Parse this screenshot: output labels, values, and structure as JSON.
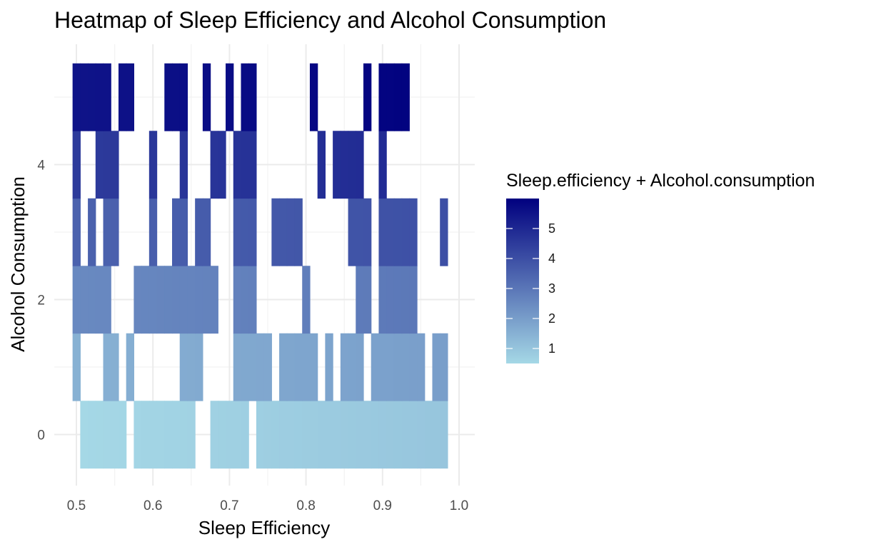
{
  "chart_data": {
    "type": "heatmap",
    "title": "Heatmap of Sleep Efficiency and Alcohol Consumption",
    "xlabel": "Sleep Efficiency",
    "ylabel": "Alcohol Consumption",
    "xlim": [
      0.5,
      1.0
    ],
    "ylim": [
      -0.5,
      5.5
    ],
    "x_ticks": [
      0.5,
      0.6,
      0.7,
      0.8,
      0.9,
      1.0
    ],
    "x_tick_labels": [
      "0.5",
      "0.6",
      "0.7",
      "0.8",
      "0.9",
      "1.0"
    ],
    "y_ticks": [
      0,
      2,
      4
    ],
    "y_tick_labels": [
      "0",
      "2",
      "4"
    ],
    "tile_width": 0.01,
    "tile_height": 1,
    "grid": true,
    "legend": {
      "title": "Sleep.efficiency + Alcohol.consumption",
      "position": "right",
      "range": [
        0.5,
        6.0
      ],
      "breaks": [
        1,
        2,
        3,
        4,
        5
      ],
      "labels": [
        "1",
        "2",
        "3",
        "4",
        "5"
      ],
      "low_color": "#a5d8e6",
      "high_color": "#00007f"
    },
    "rows": [
      {
        "alcohol": 0,
        "efficiency": [
          0.51,
          0.52,
          0.53,
          0.54,
          0.55,
          0.56,
          0.58,
          0.59,
          0.6,
          0.61,
          0.62,
          0.63,
          0.64,
          0.65,
          0.68,
          0.69,
          0.7,
          0.71,
          0.72,
          0.74,
          0.75,
          0.76,
          0.77,
          0.78,
          0.79,
          0.8,
          0.81,
          0.82,
          0.83,
          0.84,
          0.85,
          0.86,
          0.87,
          0.88,
          0.89,
          0.9,
          0.91,
          0.92,
          0.93,
          0.94,
          0.95,
          0.96,
          0.97,
          0.98
        ]
      },
      {
        "alcohol": 1,
        "efficiency": [
          0.5,
          0.54,
          0.55,
          0.57,
          0.64,
          0.65,
          0.66,
          0.71,
          0.72,
          0.73,
          0.74,
          0.75,
          0.77,
          0.78,
          0.79,
          0.8,
          0.81,
          0.83,
          0.85,
          0.86,
          0.87,
          0.89,
          0.9,
          0.91,
          0.92,
          0.93,
          0.94,
          0.95,
          0.97,
          0.98
        ]
      },
      {
        "alcohol": 2,
        "efficiency": [
          0.5,
          0.51,
          0.52,
          0.53,
          0.54,
          0.58,
          0.59,
          0.6,
          0.61,
          0.62,
          0.63,
          0.64,
          0.65,
          0.66,
          0.67,
          0.68,
          0.71,
          0.72,
          0.73,
          0.8,
          0.87,
          0.88,
          0.9,
          0.91,
          0.92,
          0.93,
          0.94
        ]
      },
      {
        "alcohol": 3,
        "efficiency": [
          0.5,
          0.52,
          0.54,
          0.55,
          0.6,
          0.63,
          0.64,
          0.66,
          0.67,
          0.71,
          0.72,
          0.73,
          0.76,
          0.77,
          0.78,
          0.79,
          0.86,
          0.87,
          0.88,
          0.9,
          0.91,
          0.92,
          0.93,
          0.94,
          0.98
        ]
      },
      {
        "alcohol": 4,
        "efficiency": [
          0.5,
          0.53,
          0.54,
          0.55,
          0.6,
          0.64,
          0.68,
          0.69,
          0.71,
          0.72,
          0.73,
          0.82,
          0.84,
          0.85,
          0.86,
          0.87,
          0.9
        ]
      },
      {
        "alcohol": 5,
        "efficiency": [
          0.5,
          0.51,
          0.52,
          0.53,
          0.54,
          0.56,
          0.57,
          0.62,
          0.63,
          0.64,
          0.67,
          0.7,
          0.72,
          0.73,
          0.81,
          0.88,
          0.9,
          0.91,
          0.92,
          0.93
        ]
      }
    ]
  }
}
